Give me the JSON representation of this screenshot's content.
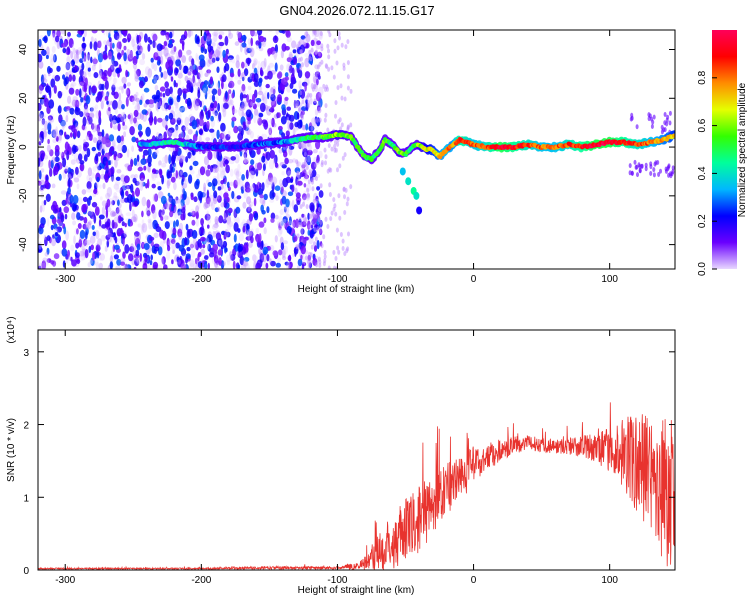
{
  "title": "GN04.2026.072.11.15.G17",
  "colors": {
    "spectrogram_cmap": [
      "#e8d7ff",
      "#6a00ff",
      "#0000ff",
      "#00b7ff",
      "#00ff9c",
      "#33ff00",
      "#e5ff00",
      "#ff8c00",
      "#ff0000",
      "#ff0059"
    ],
    "snr_line": "#e8332e"
  },
  "chart_data": [
    {
      "type": "heatmap",
      "name": "spectrogram",
      "xlabel": "Height of straight line (km)",
      "ylabel": "Frequency (Hz)",
      "xlim": [
        -320,
        148
      ],
      "ylim": [
        -50,
        48
      ],
      "xticks": [
        -300,
        -200,
        -100,
        0,
        100
      ],
      "yticks": [
        -40,
        -20,
        0,
        20,
        40
      ],
      "colorbar": {
        "label": "Normalized spectral amplitude",
        "range": [
          0,
          1
        ],
        "ticks": [
          "0.0",
          "0.2",
          "0.4",
          "0.6",
          "0.8"
        ]
      },
      "ridge": {
        "description_free": true,
        "x": [
          -240,
          -220,
          -200,
          -180,
          -160,
          -140,
          -120,
          -110,
          -100,
          -95,
          -90,
          -85,
          -80,
          -75,
          -70,
          -65,
          -60,
          -55,
          -50,
          -45,
          -40,
          -35,
          -30,
          -25,
          -20,
          -15,
          -10,
          -5,
          0,
          10,
          20,
          30,
          40,
          50,
          60,
          70,
          80,
          90,
          100,
          110,
          120,
          130,
          140,
          148
        ],
        "freq": [
          1,
          2,
          0,
          0,
          1,
          2,
          4,
          4,
          5,
          5,
          4,
          0,
          -4,
          -5,
          -2,
          3,
          1,
          -2,
          -3,
          0,
          1,
          -1,
          -1,
          -4,
          -1,
          1,
          3,
          2,
          1,
          0,
          0,
          0,
          1,
          0,
          0,
          1,
          0,
          1,
          2,
          2,
          1,
          2,
          3,
          5
        ],
        "amplitude": [
          0.35,
          0.45,
          0.25,
          0.2,
          0.25,
          0.3,
          0.5,
          0.55,
          0.6,
          0.6,
          0.55,
          0.5,
          0.55,
          0.5,
          0.5,
          0.55,
          0.5,
          0.6,
          0.55,
          0.5,
          0.6,
          0.65,
          0.7,
          0.75,
          0.8,
          0.75,
          0.9,
          0.85,
          0.8,
          0.85,
          0.95,
          0.9,
          0.85,
          0.8,
          0.8,
          0.85,
          0.9,
          0.95,
          0.95,
          0.9,
          0.85,
          0.8,
          0.75,
          0.7
        ]
      }
    },
    {
      "type": "line",
      "name": "snr",
      "xlabel": "Height of straight line (km)",
      "ylabel": "SNR (10 * v/v)",
      "yscale_label": "(x10⁴)",
      "xlim": [
        -320,
        148
      ],
      "ylim": [
        0,
        3.3
      ],
      "xticks": [
        -300,
        -200,
        -100,
        0,
        100
      ],
      "yticks": [
        0,
        1,
        2,
        3
      ],
      "series": [
        {
          "name": "SNR",
          "x": [
            -320,
            -250,
            -200,
            -150,
            -100,
            -85,
            -75,
            -70,
            -65,
            -60,
            -55,
            -50,
            -45,
            -40,
            -35,
            -30,
            -25,
            -20,
            -15,
            -10,
            -5,
            0,
            10,
            20,
            30,
            40,
            50,
            60,
            70,
            80,
            90,
            100,
            110,
            120,
            130,
            140,
            148
          ],
          "mean": [
            0.02,
            0.02,
            0.02,
            0.03,
            0.03,
            0.05,
            0.15,
            0.25,
            0.3,
            0.35,
            0.45,
            0.55,
            0.6,
            0.7,
            0.8,
            0.9,
            1.0,
            1.1,
            1.2,
            1.3,
            1.35,
            1.45,
            1.55,
            1.65,
            1.72,
            1.75,
            1.72,
            1.7,
            1.7,
            1.7,
            1.68,
            1.65,
            1.6,
            1.45,
            1.3,
            1.1,
            1.0
          ],
          "spread": [
            0.01,
            0.01,
            0.01,
            0.02,
            0.02,
            0.05,
            0.15,
            0.25,
            0.3,
            0.35,
            0.4,
            0.45,
            0.45,
            0.45,
            0.45,
            0.45,
            0.4,
            0.4,
            0.35,
            0.3,
            0.3,
            0.25,
            0.2,
            0.15,
            0.12,
            0.1,
            0.1,
            0.1,
            0.12,
            0.15,
            0.2,
            0.3,
            0.5,
            0.7,
            0.9,
            1.1,
            0.9
          ]
        }
      ]
    }
  ]
}
